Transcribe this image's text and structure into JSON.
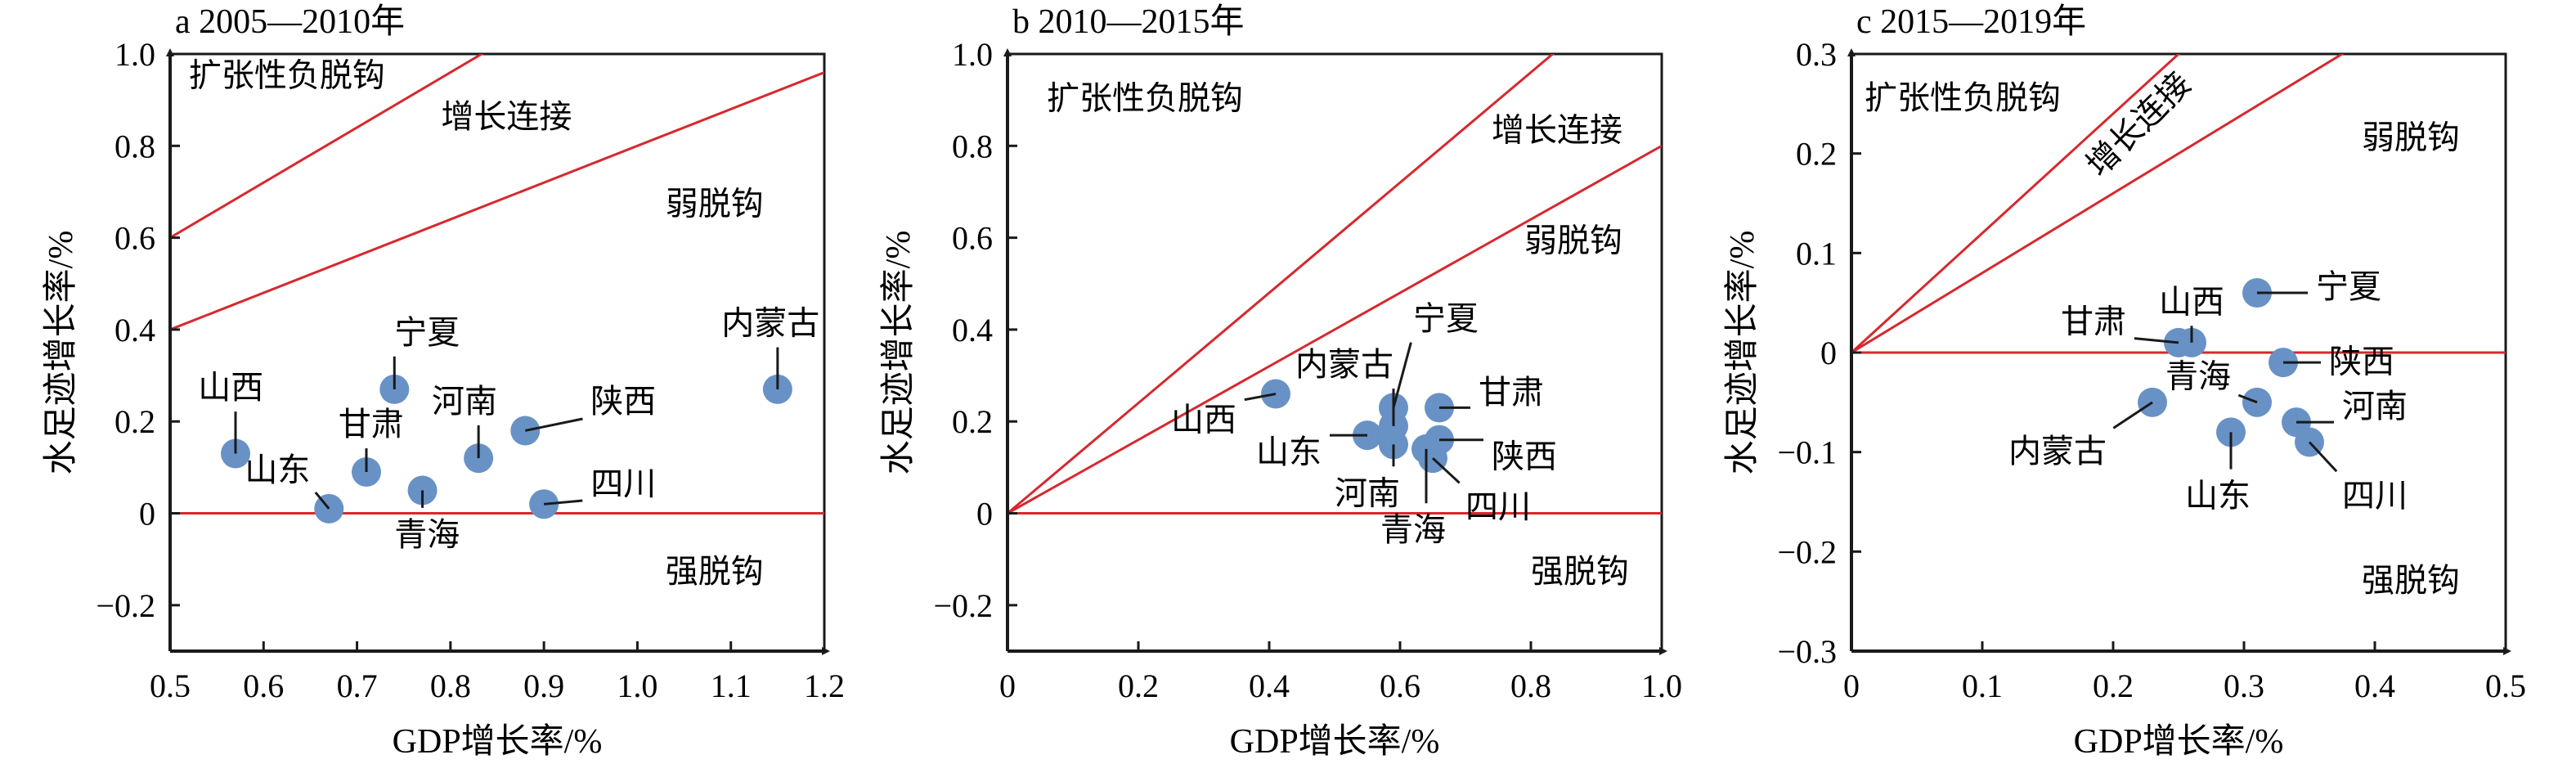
{
  "chart_data": [
    {
      "type": "scatter",
      "title": "a 2005—2010年",
      "xlabel": "GDP增长率/%",
      "ylabel": "水足迹增长率/%",
      "xlim": [
        0.5,
        1.2
      ],
      "ylim": [
        -0.3,
        1.0
      ],
      "xticks": [
        0.5,
        0.6,
        0.7,
        0.8,
        0.9,
        1.0,
        1.1,
        1.2
      ],
      "xtick_labels": [
        "0.5",
        "0.6",
        "0.7",
        "0.8",
        "0.9",
        "1.0",
        "1.1",
        "1.2"
      ],
      "yticks": [
        -0.2,
        0,
        0.2,
        0.4,
        0.6,
        0.8,
        1.0
      ],
      "ytick_labels": [
        "−0.2",
        "0",
        "0.2",
        "0.4",
        "0.6",
        "0.8",
        "1.0"
      ],
      "grid": false,
      "point_color": "#6892c6",
      "line_color": "#d7282e",
      "reference_lines": [
        {
          "name": "zero",
          "slope": 0
        },
        {
          "name": "elasticity-1.2",
          "slope": 1.2
        },
        {
          "name": "elasticity-0.8",
          "slope": 0.8
        }
      ],
      "regions": [
        {
          "label": "扩张性负脱钩",
          "x": 0.52,
          "y": 0.93
        },
        {
          "label": "增长连接",
          "x": 0.79,
          "y": 0.84
        },
        {
          "label": "弱脱钩",
          "x": 1.03,
          "y": 0.65
        },
        {
          "label": "强脱钩",
          "x": 1.03,
          "y": -0.15
        }
      ],
      "points": [
        {
          "name": "山西",
          "x": 0.57,
          "y": 0.13,
          "lx": 0.53,
          "ly": 0.25
        },
        {
          "name": "山东",
          "x": 0.67,
          "y": 0.01,
          "lx": 0.58,
          "ly": 0.07
        },
        {
          "name": "甘肃",
          "x": 0.71,
          "y": 0.09,
          "lx": 0.68,
          "ly": 0.17
        },
        {
          "name": "宁夏",
          "x": 0.74,
          "y": 0.27,
          "lx": 0.74,
          "ly": 0.37
        },
        {
          "name": "青海",
          "x": 0.77,
          "y": 0.05,
          "lx": 0.74,
          "ly": -0.07
        },
        {
          "name": "河南",
          "x": 0.83,
          "y": 0.12,
          "lx": 0.78,
          "ly": 0.22
        },
        {
          "name": "陕西",
          "x": 0.88,
          "y": 0.18,
          "lx": 0.95,
          "ly": 0.22
        },
        {
          "name": "四川",
          "x": 0.9,
          "y": 0.02,
          "lx": 0.95,
          "ly": 0.04
        },
        {
          "name": "内蒙古",
          "x": 1.15,
          "y": 0.27,
          "lx": 1.09,
          "ly": 0.39
        }
      ]
    },
    {
      "type": "scatter",
      "title": "b 2010—2015年",
      "xlabel": "GDP增长率/%",
      "ylabel": "水足迹增长率/%",
      "xlim": [
        0,
        1.0
      ],
      "ylim": [
        -0.3,
        1.0
      ],
      "xticks": [
        0,
        0.2,
        0.4,
        0.6,
        0.8,
        1.0
      ],
      "xtick_labels": [
        "0",
        "0.2",
        "0.4",
        "0.6",
        "0.8",
        "1.0"
      ],
      "yticks": [
        -0.2,
        0,
        0.2,
        0.4,
        0.6,
        0.8,
        1.0
      ],
      "ytick_labels": [
        "−0.2",
        "0",
        "0.2",
        "0.4",
        "0.6",
        "0.8",
        "1.0"
      ],
      "grid": false,
      "point_color": "#6892c6",
      "line_color": "#d7282e",
      "reference_lines": [
        {
          "name": "zero",
          "slope": 0
        },
        {
          "name": "elasticity-1.2",
          "slope": 1.2
        },
        {
          "name": "elasticity-0.8",
          "slope": 0.8
        }
      ],
      "regions": [
        {
          "label": "扩张性负脱钩",
          "x": 0.06,
          "y": 0.88
        },
        {
          "label": "增长连接",
          "x": 0.74,
          "y": 0.81
        },
        {
          "label": "弱脱钩",
          "x": 0.79,
          "y": 0.57
        },
        {
          "label": "强脱钩",
          "x": 0.8,
          "y": -0.15
        }
      ],
      "points": [
        {
          "name": "山西",
          "x": 0.41,
          "y": 0.26,
          "lx": 0.25,
          "ly": 0.18
        },
        {
          "name": "山东",
          "x": 0.55,
          "y": 0.17,
          "lx": 0.38,
          "ly": 0.11
        },
        {
          "name": "内蒙古",
          "x": 0.59,
          "y": 0.19,
          "lx": 0.44,
          "ly": 0.3
        },
        {
          "name": "宁夏",
          "x": 0.59,
          "y": 0.23,
          "lx": 0.62,
          "ly": 0.4
        },
        {
          "name": "河南",
          "x": 0.59,
          "y": 0.15,
          "lx": 0.5,
          "ly": 0.02
        },
        {
          "name": "青海",
          "x": 0.64,
          "y": 0.14,
          "lx": 0.57,
          "ly": -0.06
        },
        {
          "name": "甘肃",
          "x": 0.66,
          "y": 0.23,
          "lx": 0.72,
          "ly": 0.24
        },
        {
          "name": "陕西",
          "x": 0.66,
          "y": 0.16,
          "lx": 0.74,
          "ly": 0.1
        },
        {
          "name": "四川",
          "x": 0.65,
          "y": 0.12,
          "lx": 0.7,
          "ly": -0.01
        }
      ]
    },
    {
      "type": "scatter",
      "title": "c 2015—2019年",
      "xlabel": "GDP增长率/%",
      "ylabel": "水足迹增长率/%",
      "xlim": [
        0,
        0.5
      ],
      "ylim": [
        -0.3,
        0.3
      ],
      "xticks": [
        0,
        0.1,
        0.2,
        0.3,
        0.4,
        0.5
      ],
      "xtick_labels": [
        "0",
        "0.1",
        "0.2",
        "0.3",
        "0.4",
        "0.5"
      ],
      "yticks": [
        -0.3,
        -0.2,
        -0.1,
        0,
        0.1,
        0.2,
        0.3
      ],
      "ytick_labels": [
        "−0.3",
        "−0.2",
        "−0.1",
        "0",
        "0.1",
        "0.2",
        "0.3"
      ],
      "grid": false,
      "point_color": "#6892c6",
      "line_color": "#d7282e",
      "reference_lines": [
        {
          "name": "zero",
          "slope": 0
        },
        {
          "name": "elasticity-1.2",
          "slope": 1.2
        },
        {
          "name": "elasticity-0.8",
          "slope": 0.8
        }
      ],
      "regions": [
        {
          "label": "扩张性负脱钩",
          "x": 0.01,
          "y": 0.245,
          "rotate": 0
        },
        {
          "label": "增长连接",
          "x": 0.19,
          "y": 0.175,
          "rotate": -45
        },
        {
          "label": "弱脱钩",
          "x": 0.39,
          "y": 0.205,
          "rotate": 0
        },
        {
          "label": "强脱钩",
          "x": 0.39,
          "y": -0.24,
          "rotate": 0
        }
      ],
      "points": [
        {
          "name": "内蒙古",
          "x": 0.23,
          "y": -0.05,
          "lx": 0.12,
          "ly": -0.11
        },
        {
          "name": "甘肃",
          "x": 0.25,
          "y": 0.01,
          "lx": 0.16,
          "ly": 0.02
        },
        {
          "name": "山西",
          "x": 0.26,
          "y": 0.01,
          "lx": 0.235,
          "ly": 0.04
        },
        {
          "name": "山东",
          "x": 0.29,
          "y": -0.08,
          "lx": 0.255,
          "ly": -0.155
        },
        {
          "name": "宁夏",
          "x": 0.31,
          "y": 0.06,
          "lx": 0.355,
          "ly": 0.055
        },
        {
          "name": "青海",
          "x": 0.31,
          "y": -0.05,
          "lx": 0.24,
          "ly": -0.035
        },
        {
          "name": "陕西",
          "x": 0.33,
          "y": -0.01,
          "lx": 0.365,
          "ly": -0.02
        },
        {
          "name": "河南",
          "x": 0.34,
          "y": -0.07,
          "lx": 0.375,
          "ly": -0.065
        },
        {
          "name": "四川",
          "x": 0.35,
          "y": -0.09,
          "lx": 0.375,
          "ly": -0.155
        }
      ]
    }
  ]
}
